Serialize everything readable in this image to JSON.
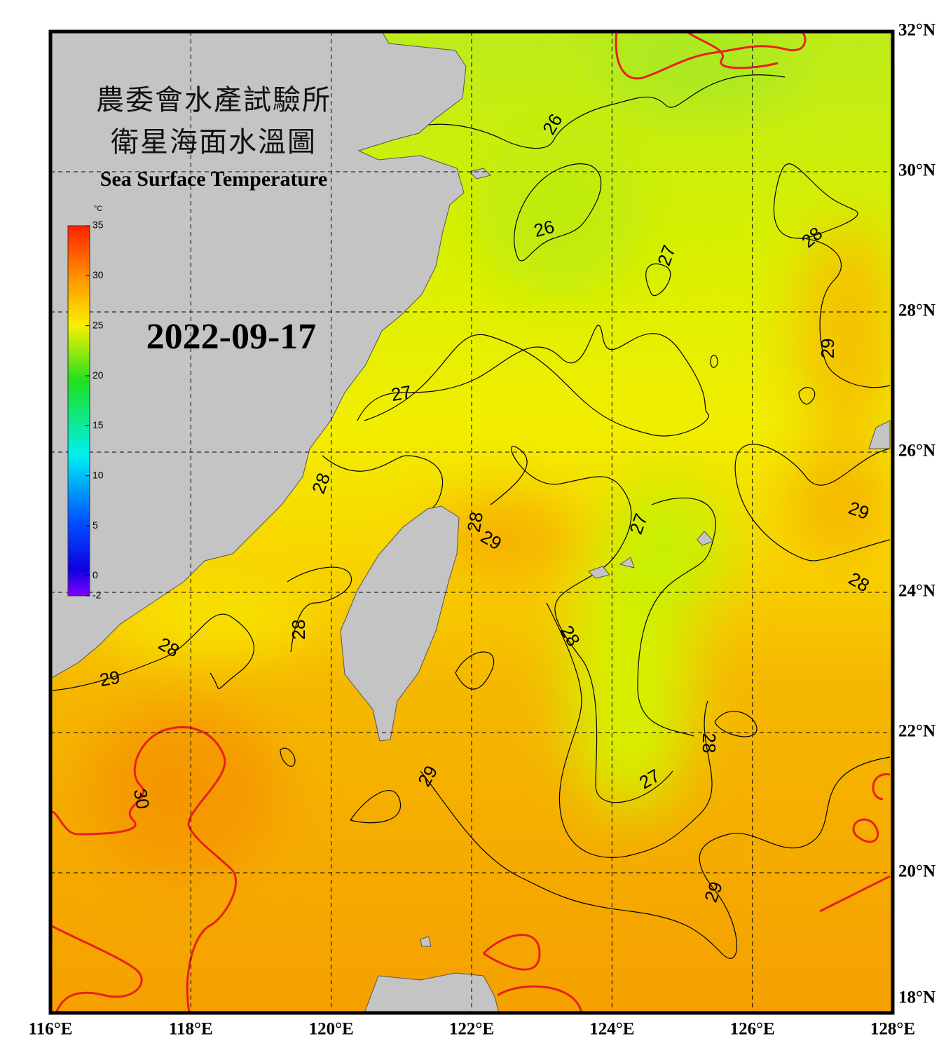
{
  "header": {
    "title_zh_1": "農委會水產試驗所",
    "title_zh_2": "衛星海面水溫圖",
    "title_en": "Sea Surface Temperature",
    "date": "2022-09-17"
  },
  "colorbar": {
    "unit": "°C",
    "range": [
      -2,
      35
    ],
    "ticks": [
      35,
      30,
      25,
      20,
      15,
      10,
      5,
      0,
      -2
    ]
  },
  "map": {
    "lonlim": [
      116,
      128
    ],
    "latlim": [
      18,
      32
    ],
    "lonticks": [
      {
        "value": 116,
        "label": "116°E"
      },
      {
        "value": 118,
        "label": "118°E"
      },
      {
        "value": 120,
        "label": "120°E"
      },
      {
        "value": 122,
        "label": "122°E"
      },
      {
        "value": 124,
        "label": "124°E"
      },
      {
        "value": 126,
        "label": "126°E"
      },
      {
        "value": 128,
        "label": "128°E"
      }
    ],
    "latticks": [
      {
        "value": 18,
        "label": "18°N"
      },
      {
        "value": 20,
        "label": "20°N"
      },
      {
        "value": 22,
        "label": "22°N"
      },
      {
        "value": 24,
        "label": "24°N"
      },
      {
        "value": 26,
        "label": "26°N"
      },
      {
        "value": 28,
        "label": "28°N"
      },
      {
        "value": 30,
        "label": "30°N"
      },
      {
        "value": 32,
        "label": "32°N"
      }
    ]
  },
  "contour_labels": [
    26,
    26,
    27,
    28,
    29,
    27,
    28,
    28,
    29,
    27,
    29,
    28,
    28,
    28,
    28,
    29,
    28,
    29,
    27,
    30,
    29
  ]
}
